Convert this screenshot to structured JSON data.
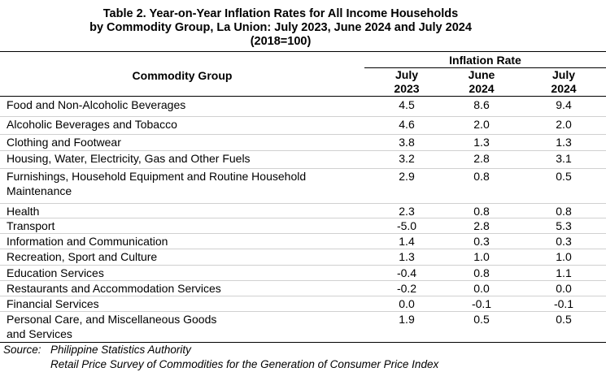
{
  "title": [
    "Table 2.  Year-on-Year Inflation Rates for All Income Households",
    "by Commodity Group, La Union: July 2023, June 2024 and July 2024",
    "(2018=100)"
  ],
  "table": {
    "header": {
      "group": "Commodity Group",
      "span": "Inflation Rate",
      "columns": [
        [
          "July",
          "2023"
        ],
        [
          "June",
          "2024"
        ],
        [
          "July",
          "2024"
        ]
      ]
    },
    "rows": [
      {
        "label": [
          "Food and Non-Alcoholic Beverages"
        ],
        "values": [
          "4.5",
          "8.6",
          "9.4"
        ]
      },
      {
        "label": [
          "Alcoholic Beverages and Tobacco"
        ],
        "values": [
          "4.6",
          "2.0",
          "2.0"
        ]
      },
      {
        "label": [
          "Clothing and Footwear"
        ],
        "values": [
          "3.8",
          "1.3",
          "1.3"
        ]
      },
      {
        "label": [
          "Housing, Water, Electricity, Gas and Other Fuels"
        ],
        "values": [
          "3.2",
          "2.8",
          "3.1"
        ]
      },
      {
        "label": [
          "Furnishings, Household Equipment and Routine Household",
          "Maintenance"
        ],
        "values": [
          "2.9",
          "0.8",
          "0.5"
        ]
      },
      {
        "label": [
          "Health"
        ],
        "values": [
          "2.3",
          "0.8",
          "0.8"
        ]
      },
      {
        "label": [
          "Transport"
        ],
        "values": [
          "-5.0",
          "2.8",
          "5.3"
        ]
      },
      {
        "label": [
          "Information and Communication"
        ],
        "values": [
          "1.4",
          "0.3",
          "0.3"
        ]
      },
      {
        "label": [
          "Recreation, Sport and Culture"
        ],
        "values": [
          "1.3",
          "1.0",
          "1.0"
        ]
      },
      {
        "label": [
          "Education Services"
        ],
        "values": [
          "-0.4",
          "0.8",
          "1.1"
        ]
      },
      {
        "label": [
          "Restaurants and Accommodation Services"
        ],
        "values": [
          "-0.2",
          "0.0",
          "0.0"
        ]
      },
      {
        "label": [
          "Financial Services"
        ],
        "values": [
          "0.0",
          "-0.1",
          "-0.1"
        ]
      },
      {
        "label": [
          "Personal Care, and Miscellaneous Goods",
          "and Services"
        ],
        "values": [
          "1.9",
          "0.5",
          "0.5"
        ]
      }
    ]
  },
  "source": {
    "label": "Source:",
    "lines": [
      "Philippine Statistics Authority",
      "Retail Price Survey of Commodities for the Generation of Consumer Price Index"
    ]
  }
}
